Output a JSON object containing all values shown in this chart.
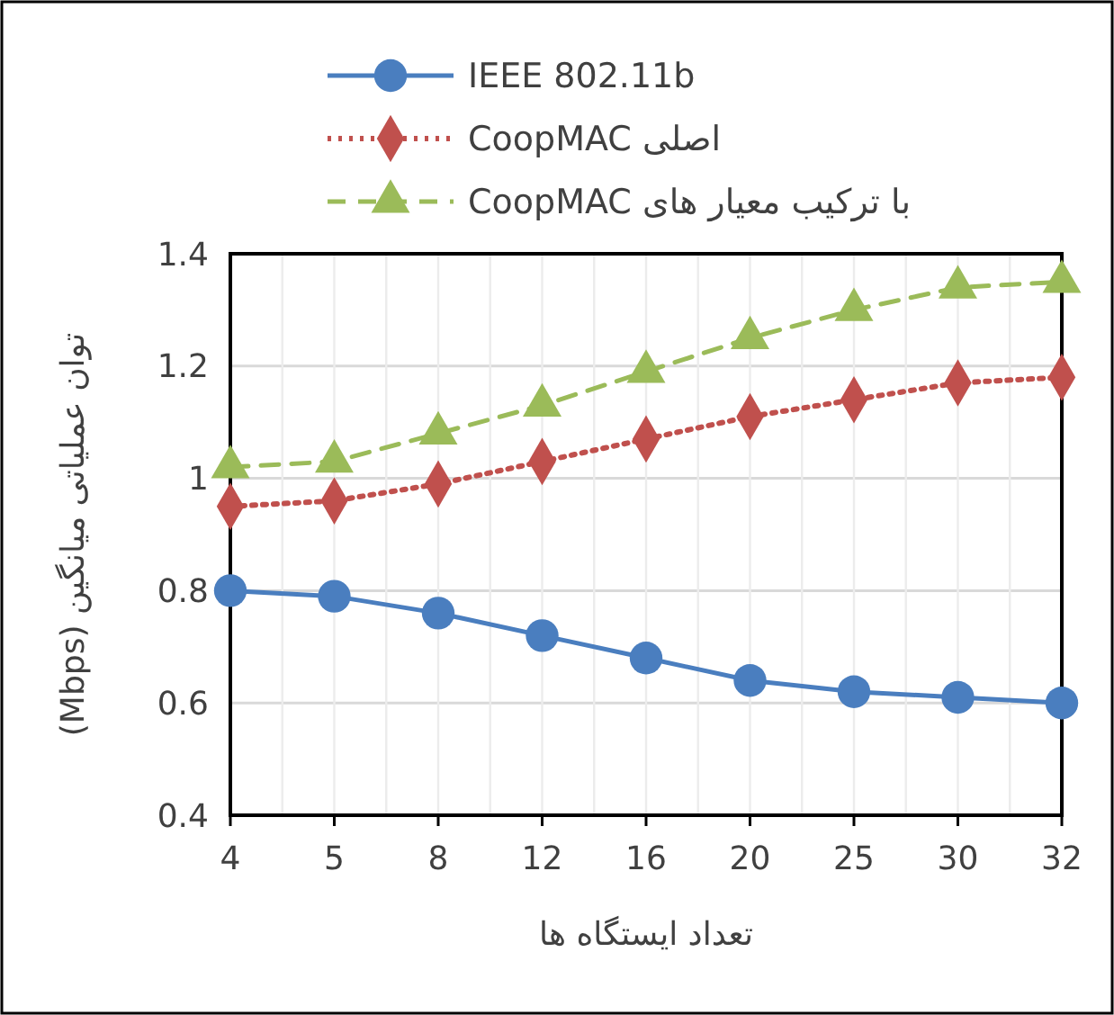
{
  "chart_data": {
    "type": "line",
    "xlabel": "تعداد ایستگاه ها",
    "ylabel": "توان عملیاتی میانگین (Mbps)",
    "categories": [
      "4",
      "5",
      "8",
      "12",
      "16",
      "20",
      "25",
      "30",
      "32"
    ],
    "ylim": [
      0.4,
      1.4
    ],
    "yticks": [
      {
        "value": 0.4,
        "label": "0.4"
      },
      {
        "value": 0.6,
        "label": "0.6"
      },
      {
        "value": 0.8,
        "label": "0.8"
      },
      {
        "value": 1,
        "label": "1"
      },
      {
        "value": 1.2,
        "label": "1.2"
      },
      {
        "value": 1.4,
        "label": "1.4"
      }
    ],
    "grid": true,
    "legend": "top",
    "series": [
      {
        "name": "IEEE 802.11b",
        "color": "#4a7ebf",
        "marker": "circle",
        "line_style": "solid",
        "values": [
          0.8,
          0.79,
          0.76,
          0.72,
          0.68,
          0.64,
          0.62,
          0.61,
          0.6
        ]
      },
      {
        "name": "CoopMAC اصلی",
        "color": "#c0504d",
        "marker": "diamond",
        "line_style": "dotted",
        "values": [
          0.95,
          0.96,
          0.99,
          1.03,
          1.07,
          1.11,
          1.14,
          1.17,
          1.18
        ]
      },
      {
        "name": "CoopMAC با ترکیب معیار های",
        "color": "#9bbb59",
        "marker": "triangle",
        "line_style": "dashed",
        "values": [
          1.02,
          1.03,
          1.08,
          1.13,
          1.19,
          1.25,
          1.3,
          1.34,
          1.35
        ]
      }
    ]
  }
}
